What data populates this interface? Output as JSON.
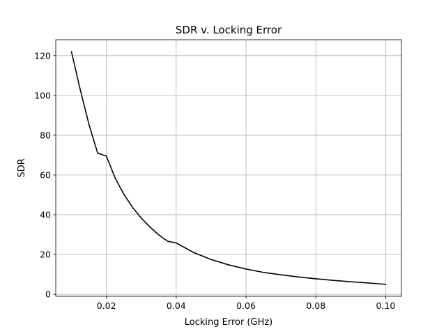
{
  "chart_data": {
    "type": "line",
    "title": "SDR v. Locking Error",
    "xlabel": "Locking Error (GHz)",
    "ylabel": "SDR",
    "xlim": [
      0.0055,
      0.1045
    ],
    "ylim": [
      -1,
      128
    ],
    "xticks": [
      0.02,
      0.04,
      0.06,
      0.08,
      0.1
    ],
    "xtick_labels": [
      "0.02",
      "0.04",
      "0.06",
      "0.08",
      "0.10"
    ],
    "yticks": [
      0,
      20,
      40,
      60,
      80,
      100,
      120
    ],
    "ytick_labels": [
      "0",
      "20",
      "40",
      "60",
      "80",
      "100",
      "120"
    ],
    "grid": true,
    "legend": "none",
    "series": [
      {
        "color": "#000000",
        "x": [
          0.01,
          0.0125,
          0.015,
          0.0175,
          0.02,
          0.0225,
          0.025,
          0.0275,
          0.03,
          0.0325,
          0.035,
          0.0375,
          0.04,
          0.045,
          0.05,
          0.055,
          0.06,
          0.065,
          0.07,
          0.075,
          0.08,
          0.085,
          0.09,
          0.095,
          0.1
        ],
        "y": [
          122,
          103,
          85.5,
          71,
          69.5,
          58.5,
          50.3,
          43.7,
          38.3,
          33.8,
          29.9,
          26.7,
          25.8,
          21,
          17.5,
          14.8,
          12.7,
          11,
          9.8,
          8.7,
          7.8,
          7,
          6.3,
          5.7,
          5
        ]
      }
    ]
  }
}
